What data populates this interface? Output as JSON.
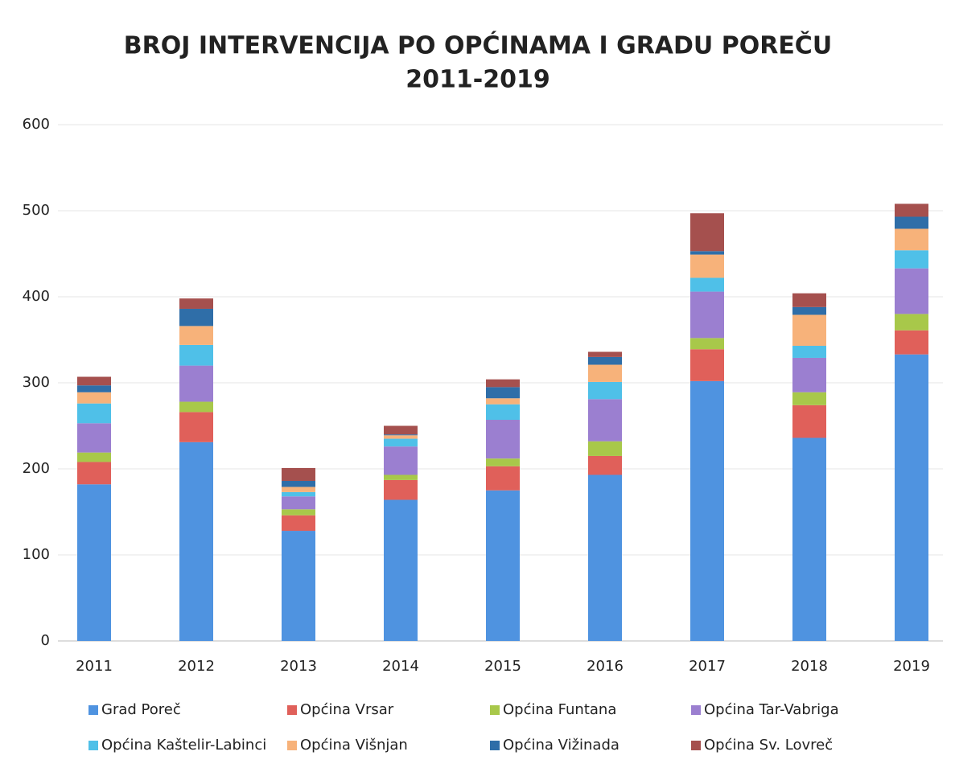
{
  "chart_data": {
    "type": "stacked_bar",
    "title": [
      "BROJ INTERVENCIJA PO OPĆINAMA I GRADU POREČU",
      "2011-2019"
    ],
    "categories": [
      "2011",
      "2012",
      "2013",
      "2014",
      "2015",
      "2016",
      "2017",
      "2018",
      "2019"
    ],
    "series": [
      {
        "name": "Grad Poreč",
        "color": "#4f93e0",
        "values": [
          182,
          231,
          128,
          164,
          175,
          193,
          302,
          236,
          333
        ]
      },
      {
        "name": "Općina Vrsar",
        "color": "#e0605a",
        "values": [
          26,
          35,
          18,
          23,
          28,
          22,
          37,
          38,
          28
        ]
      },
      {
        "name": "Općina Funtana",
        "color": "#a8c84a",
        "values": [
          11,
          12,
          7,
          6,
          9,
          17,
          13,
          15,
          19
        ]
      },
      {
        "name": "Općina Tar-Vabriga",
        "color": "#9b7fd0",
        "values": [
          34,
          42,
          15,
          33,
          45,
          49,
          54,
          40,
          53
        ]
      },
      {
        "name": "Općina Kaštelir-Labinci",
        "color": "#4fc0e8",
        "values": [
          23,
          24,
          5,
          9,
          18,
          20,
          16,
          14,
          21
        ]
      },
      {
        "name": "Općina Višnjan",
        "color": "#f7b27a",
        "values": [
          13,
          22,
          6,
          4,
          7,
          20,
          27,
          36,
          25
        ]
      },
      {
        "name": "Općina Vižinada",
        "color": "#2f6ea8",
        "values": [
          8,
          20,
          7,
          1,
          13,
          9,
          4,
          9,
          14
        ]
      },
      {
        "name": "Općina Sv. Lovreč",
        "color": "#a5504e",
        "values": [
          10,
          12,
          15,
          10,
          9,
          6,
          44,
          16,
          15
        ]
      }
    ],
    "ylim": [
      0,
      600
    ],
    "yticks": [
      0,
      100,
      200,
      300,
      400,
      500,
      600
    ],
    "grid": true
  }
}
